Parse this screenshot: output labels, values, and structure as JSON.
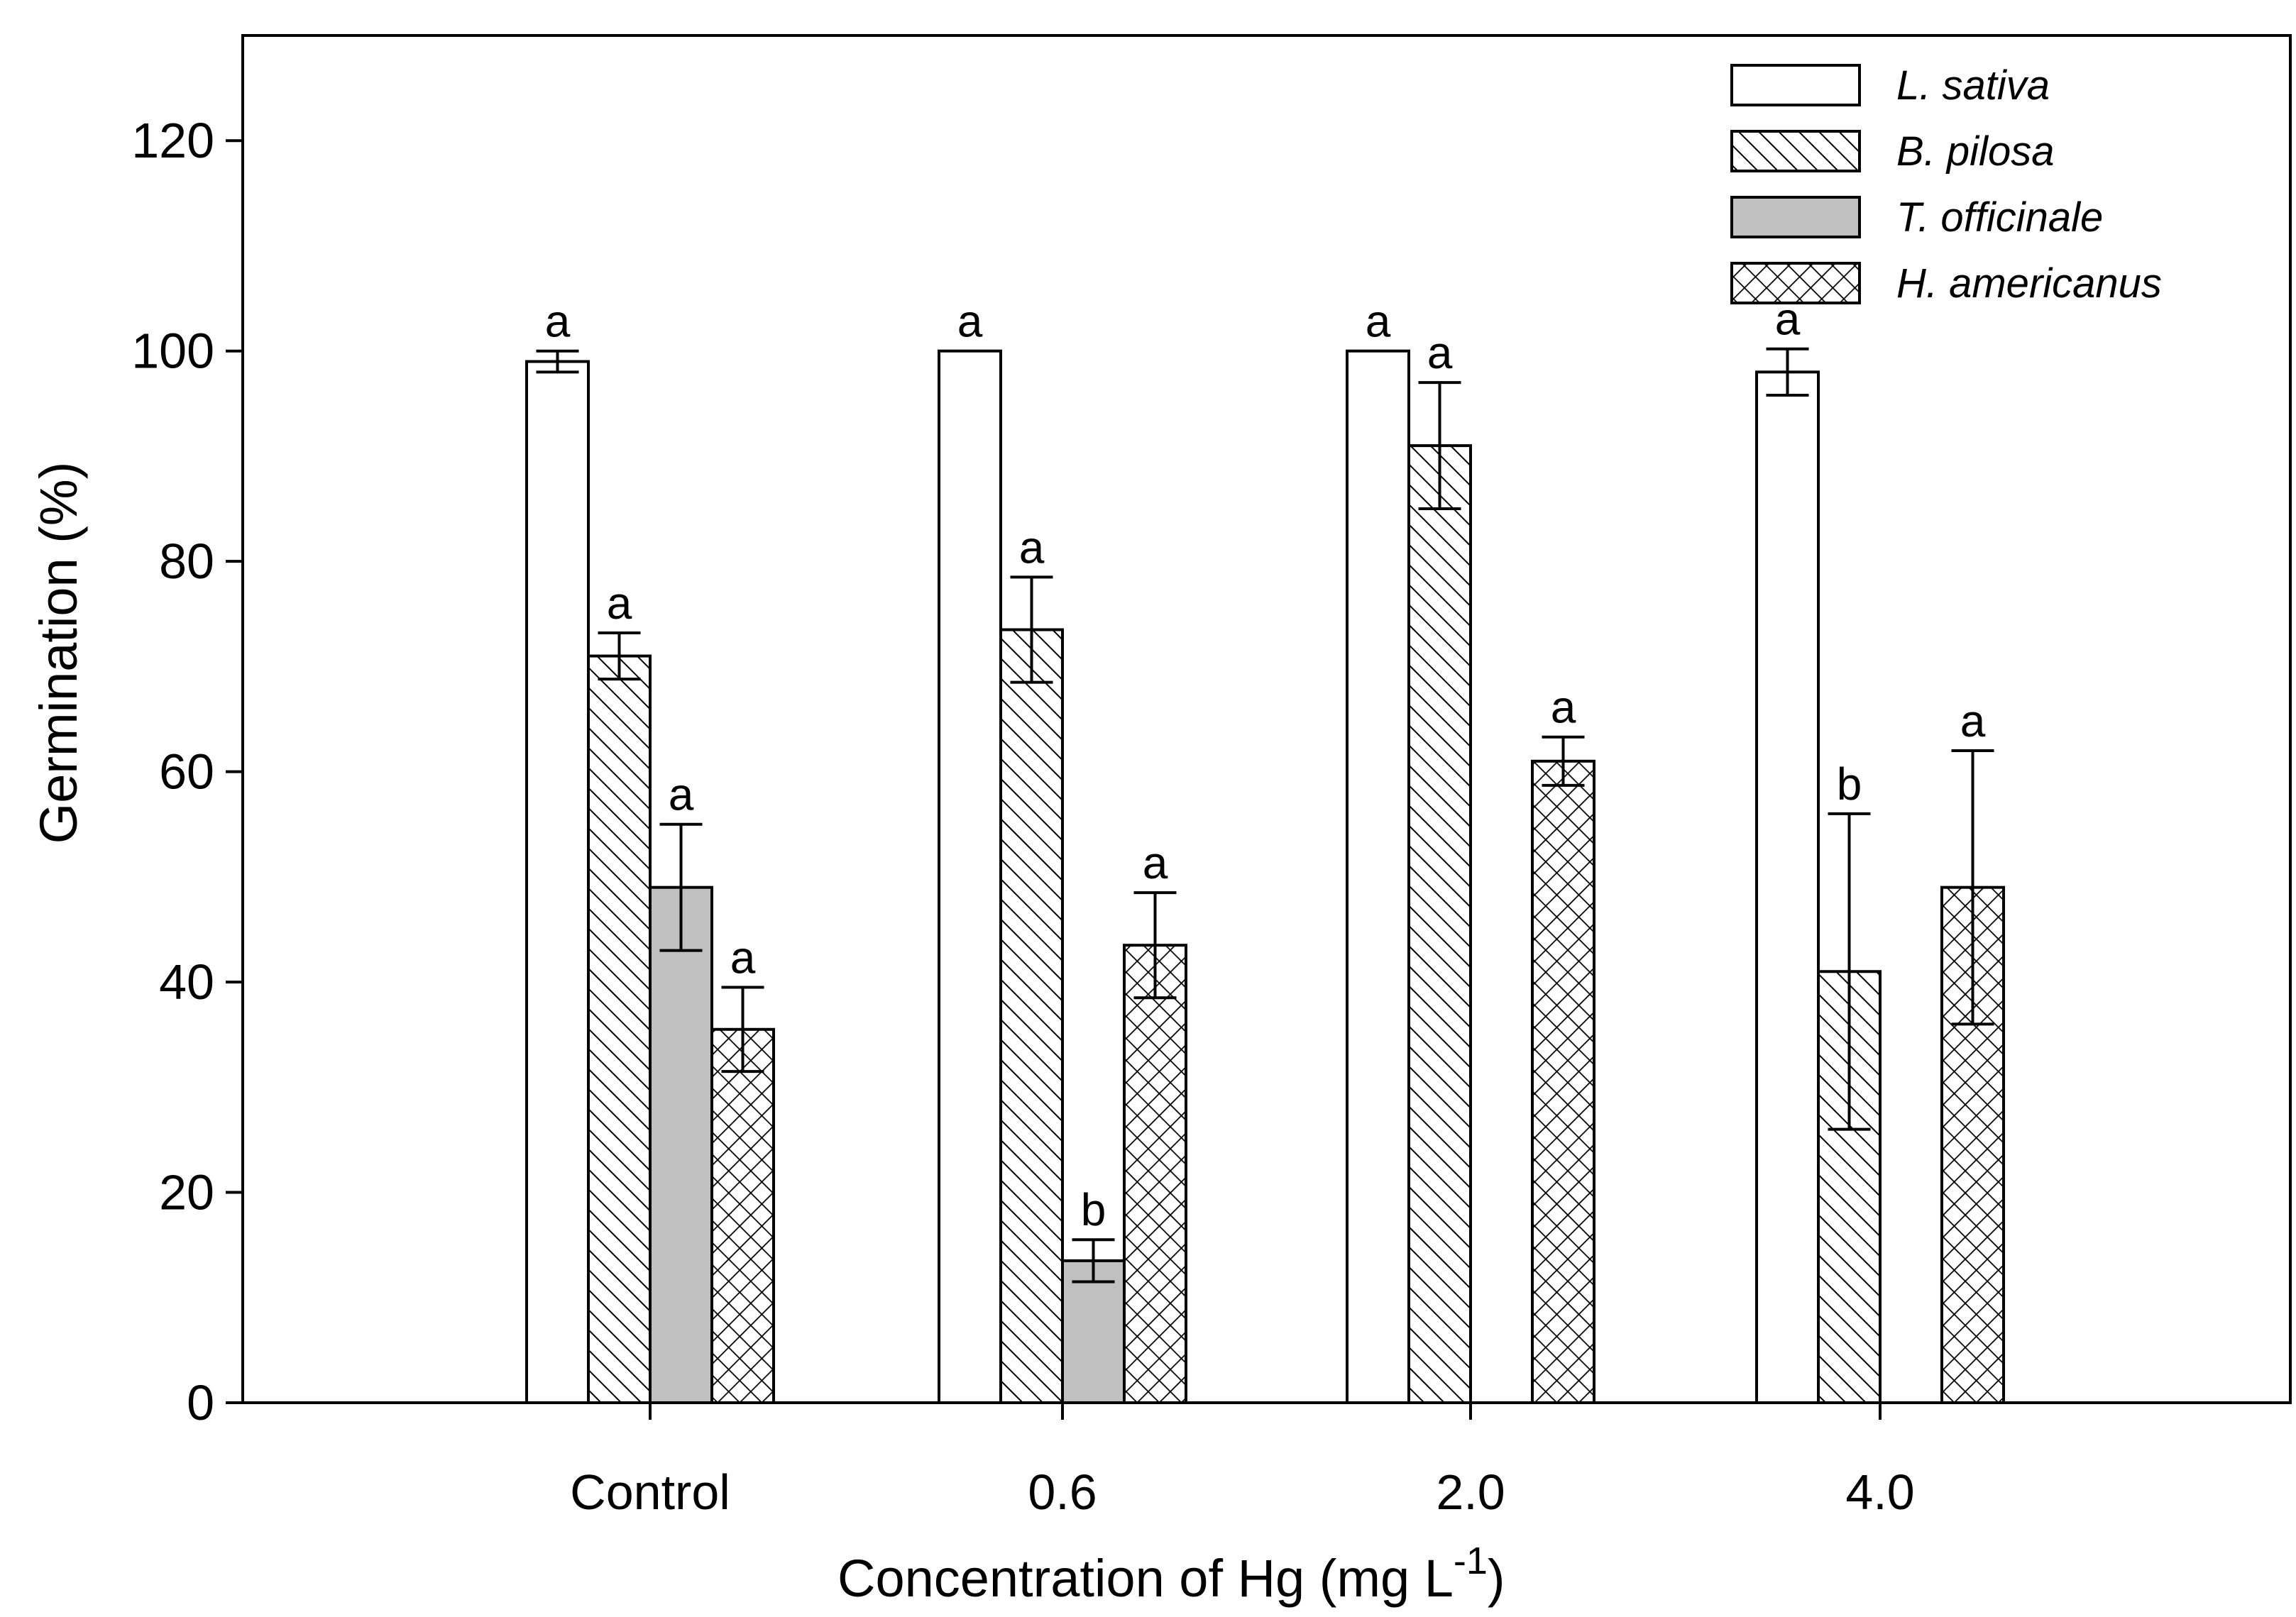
{
  "chart_data": {
    "type": "bar",
    "title": "",
    "xlabel": "Concentration of Hg  (mg L",
    "xlabel_superscript": "-1",
    "xlabel_suffix": ")",
    "ylabel": "Germination  (%)",
    "ylim": [
      0,
      130
    ],
    "yticks": [
      0,
      20,
      40,
      60,
      80,
      100,
      120
    ],
    "categories": [
      "Control",
      "0.6",
      "2.0",
      "4.0"
    ],
    "legend_position": "top-right",
    "series": [
      {
        "name": "L. sativa",
        "pattern": "none",
        "fill": "#ffffff",
        "values": [
          99,
          100,
          100,
          98
        ],
        "errors": [
          1,
          null,
          null,
          2.2
        ],
        "letters": [
          "a",
          "a",
          "a",
          "a"
        ]
      },
      {
        "name": "B. pilosa",
        "pattern": "diagonal",
        "fill": "#ffffff",
        "values": [
          71,
          73.5,
          91,
          41
        ],
        "errors": [
          2.2,
          5,
          6,
          15
        ],
        "letters": [
          "a",
          "a",
          "a",
          "b"
        ]
      },
      {
        "name": "T. officinale",
        "pattern": "none",
        "fill": "#c0c0c0",
        "values": [
          49,
          13.5,
          null,
          null
        ],
        "errors": [
          6,
          2,
          null,
          null
        ],
        "letters": [
          "a",
          "b",
          "",
          ""
        ]
      },
      {
        "name": "H. americanus",
        "pattern": "crosshatch",
        "fill": "#ffffff",
        "values": [
          35.5,
          43.5,
          61,
          49
        ],
        "errors": [
          4,
          5,
          2.3,
          13
        ],
        "letters": [
          "a",
          "a",
          "a",
          "a"
        ]
      }
    ]
  }
}
